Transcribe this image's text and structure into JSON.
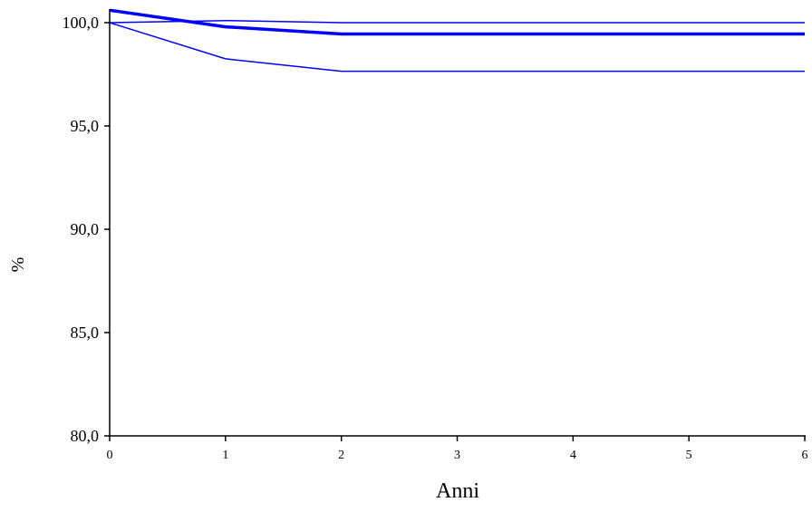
{
  "chart_data": {
    "type": "line",
    "xlabel": "Anni",
    "ylabel": "%",
    "xlim": [
      0,
      6
    ],
    "ylim": [
      80,
      100.6
    ],
    "x_ticks": [
      "0",
      "1",
      "2",
      "3",
      "4",
      "5",
      "6"
    ],
    "y_ticks": [
      "80,0",
      "85,0",
      "90,0",
      "95,0",
      "100,0"
    ],
    "x_tick_values": [
      0,
      1,
      2,
      3,
      4,
      5,
      6
    ],
    "y_tick_values": [
      80,
      85,
      90,
      95,
      100
    ],
    "grid": false,
    "line_color": "#0000ff",
    "series": [
      {
        "role": "main",
        "x": [
          0,
          1,
          2,
          3,
          4,
          5,
          6
        ],
        "values": [
          100.6,
          99.8,
          99.45,
          99.45,
          99.45,
          99.45,
          99.45
        ]
      },
      {
        "role": "upper",
        "x": [
          0,
          1,
          2,
          3,
          4,
          5,
          6
        ],
        "values": [
          100.0,
          100.1,
          100.0,
          100.0,
          100.0,
          100.0,
          100.0
        ]
      },
      {
        "role": "lower",
        "x": [
          0,
          1,
          2,
          3,
          4,
          5,
          6
        ],
        "values": [
          100.0,
          98.25,
          97.65,
          97.65,
          97.65,
          97.65,
          97.65
        ]
      }
    ]
  }
}
